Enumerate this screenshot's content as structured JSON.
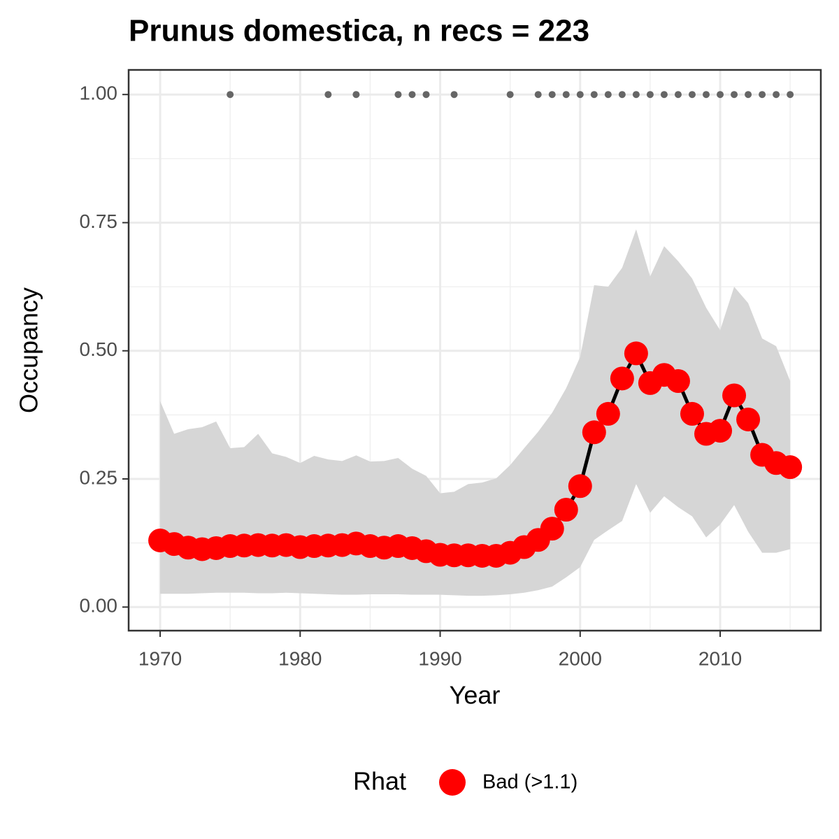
{
  "chart_data": {
    "type": "line",
    "title": "Prunus domestica, n recs = 223",
    "xlabel": "Year",
    "ylabel": "Occupancy",
    "legend_title": "Rhat",
    "x": [
      1970,
      1971,
      1972,
      1973,
      1974,
      1975,
      1976,
      1977,
      1978,
      1979,
      1980,
      1981,
      1982,
      1983,
      1984,
      1985,
      1986,
      1987,
      1988,
      1989,
      1990,
      1991,
      1992,
      1993,
      1994,
      1995,
      1996,
      1997,
      1998,
      1999,
      2000,
      2001,
      2002,
      2003,
      2004,
      2005,
      2006,
      2007,
      2008,
      2009,
      2010,
      2011,
      2012,
      2013,
      2014,
      2015
    ],
    "series": [
      {
        "name": "Bad (>1.1)",
        "color": "#ff0000",
        "line_color": "#000000",
        "values": [
          0.13,
          0.123,
          0.116,
          0.113,
          0.115,
          0.119,
          0.12,
          0.121,
          0.12,
          0.121,
          0.117,
          0.119,
          0.12,
          0.121,
          0.124,
          0.119,
          0.116,
          0.119,
          0.115,
          0.109,
          0.102,
          0.101,
          0.101,
          0.1,
          0.1,
          0.106,
          0.117,
          0.131,
          0.153,
          0.19,
          0.236,
          0.341,
          0.377,
          0.446,
          0.495,
          0.437,
          0.453,
          0.441,
          0.377,
          0.338,
          0.344,
          0.413,
          0.366,
          0.297,
          0.281,
          0.273
        ]
      }
    ],
    "band": {
      "color": "#d6d6d6",
      "upper": [
        0.402,
        0.338,
        0.347,
        0.351,
        0.362,
        0.31,
        0.312,
        0.338,
        0.3,
        0.293,
        0.281,
        0.295,
        0.288,
        0.285,
        0.296,
        0.284,
        0.285,
        0.291,
        0.27,
        0.256,
        0.222,
        0.225,
        0.24,
        0.243,
        0.251,
        0.277,
        0.31,
        0.342,
        0.379,
        0.427,
        0.488,
        0.628,
        0.625,
        0.662,
        0.737,
        0.645,
        0.704,
        0.675,
        0.641,
        0.584,
        0.54,
        0.625,
        0.593,
        0.524,
        0.509,
        0.441
      ],
      "lower": [
        0.026,
        0.026,
        0.026,
        0.027,
        0.028,
        0.028,
        0.028,
        0.027,
        0.027,
        0.028,
        0.027,
        0.026,
        0.025,
        0.024,
        0.024,
        0.025,
        0.025,
        0.025,
        0.024,
        0.024,
        0.024,
        0.023,
        0.022,
        0.022,
        0.023,
        0.025,
        0.028,
        0.033,
        0.04,
        0.058,
        0.078,
        0.131,
        0.15,
        0.168,
        0.24,
        0.184,
        0.216,
        0.195,
        0.177,
        0.136,
        0.161,
        0.199,
        0.147,
        0.106,
        0.106,
        0.113
      ]
    },
    "records": {
      "color": "#666666",
      "x": [
        1975,
        1982,
        1984,
        1987,
        1988,
        1989,
        1991,
        1995,
        1997,
        1998,
        1999,
        2000,
        2001,
        2002,
        2003,
        2004,
        2005,
        2006,
        2007,
        2008,
        2009,
        2010,
        2011,
        2012,
        2013,
        2014,
        2015
      ],
      "y": [
        1,
        1,
        1,
        1,
        1,
        1,
        1,
        1,
        1,
        1,
        1,
        1,
        1,
        1,
        1,
        1,
        1,
        1,
        1,
        1,
        1,
        1,
        1,
        1,
        1,
        1,
        1
      ]
    },
    "xlim": [
      1967.75,
      2017.19
    ],
    "ylim": [
      -0.046,
      1.048
    ],
    "xticks": [
      1970,
      1980,
      1990,
      2000,
      2010
    ],
    "yticks": [
      {
        "value": 0,
        "label": "0.00"
      },
      {
        "value": 0.25,
        "label": "0.25"
      },
      {
        "value": 0.5,
        "label": "0.50"
      },
      {
        "value": 0.75,
        "label": "0.75"
      },
      {
        "value": 1,
        "label": "1.00"
      }
    ],
    "minor_xticks": [
      1975,
      1985,
      1995,
      2005,
      2015
    ],
    "minor_yticks": [
      0.125,
      0.375,
      0.625,
      0.875
    ],
    "grid": true
  }
}
